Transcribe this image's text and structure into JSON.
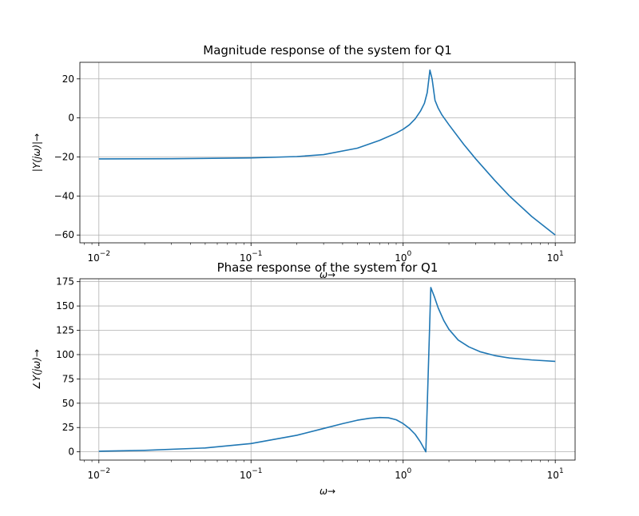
{
  "colors": {
    "series": "#1f77b4",
    "grid": "#b0b0b0"
  },
  "chart_data": [
    {
      "type": "line",
      "title": "Magnitude response of the system for Q1",
      "xlabel": "ω→",
      "ylabel": "|Y(jω)|→",
      "xscale": "log",
      "xlim": [
        0.0075,
        13.5
      ],
      "ylim": [
        -64,
        28.5
      ],
      "xticks": [
        0.01,
        0.1,
        1,
        10
      ],
      "xtick_labels": [
        {
          "base": "10",
          "exp": "−2"
        },
        {
          "base": "10",
          "exp": "−1"
        },
        {
          "base": "10",
          "exp": "0"
        },
        {
          "base": "10",
          "exp": "1"
        }
      ],
      "yticks": [
        20,
        0,
        -20,
        -40,
        -60
      ],
      "ytick_labels": [
        "20",
        "0",
        "−20",
        "−40",
        "−60"
      ],
      "grid": true,
      "series": [
        {
          "x": [
            0.01,
            0.03,
            0.1,
            0.2,
            0.3,
            0.5,
            0.7,
            0.9,
            1.0,
            1.1,
            1.2,
            1.3,
            1.38,
            1.44,
            1.5,
            1.55,
            1.62,
            1.7,
            1.8,
            2.0,
            2.5,
            3.0,
            4.0,
            5.0,
            7.0,
            10.0
          ],
          "y": [
            -21,
            -20.9,
            -20.5,
            -19.8,
            -18.8,
            -15.5,
            -11.5,
            -7.8,
            -5.8,
            -3.5,
            -0.5,
            3.5,
            7.5,
            13,
            24.5,
            20,
            9,
            5,
            1.5,
            -3.5,
            -13.5,
            -21,
            -32,
            -40,
            -50.5,
            -60
          ]
        }
      ]
    },
    {
      "type": "line",
      "title": "Phase response of the system for Q1",
      "xlabel": "ω→",
      "ylabel": "∠Y(jω)→",
      "xscale": "log",
      "xlim": [
        0.0075,
        13.5
      ],
      "ylim": [
        -8.5,
        178
      ],
      "xticks": [
        0.01,
        0.1,
        1,
        10
      ],
      "xtick_labels": [
        {
          "base": "10",
          "exp": "−2"
        },
        {
          "base": "10",
          "exp": "−1"
        },
        {
          "base": "10",
          "exp": "0"
        },
        {
          "base": "10",
          "exp": "1"
        }
      ],
      "yticks": [
        175,
        150,
        125,
        100,
        75,
        50,
        25,
        0
      ],
      "ytick_labels": [
        "175",
        "150",
        "125",
        "100",
        "75",
        "50",
        "25",
        "0"
      ],
      "grid": true,
      "series": [
        {
          "x": [
            0.01,
            0.02,
            0.05,
            0.1,
            0.2,
            0.3,
            0.4,
            0.5,
            0.6,
            0.7,
            0.8,
            0.9,
            1.0,
            1.1,
            1.2,
            1.3,
            1.41,
            1.52,
            1.6,
            1.7,
            1.85,
            2.0,
            2.3,
            2.7,
            3.2,
            4.0,
            5.0,
            7.0,
            10.0
          ],
          "y": [
            0.6,
            1.5,
            4,
            8.5,
            17,
            24,
            29,
            32.5,
            34.5,
            35.3,
            35,
            33,
            29,
            24,
            18,
            10,
            0,
            169,
            160,
            148,
            135,
            126,
            115,
            108,
            103,
            99,
            96.5,
            94.5,
            93
          ]
        }
      ]
    }
  ]
}
